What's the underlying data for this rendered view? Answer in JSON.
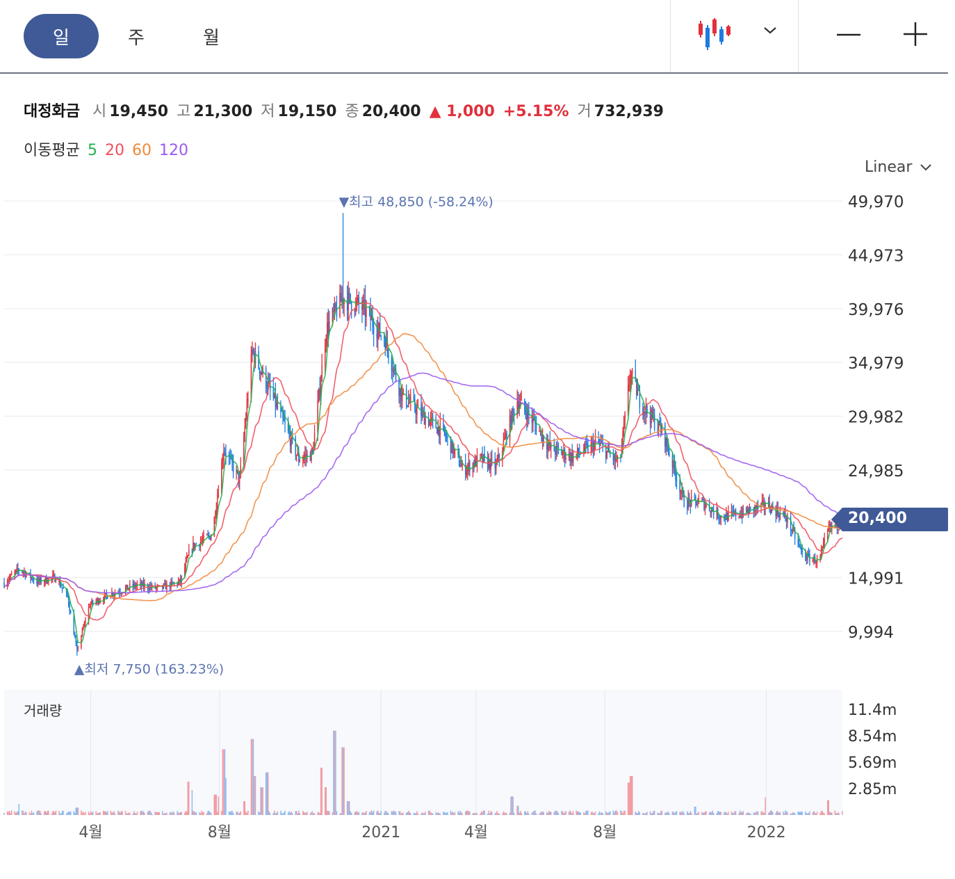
{
  "toolbar": {
    "tabs": [
      {
        "label": "일",
        "active": true
      },
      {
        "label": "주",
        "active": false
      },
      {
        "label": "월",
        "active": false
      }
    ],
    "chart_type_icon": "candlestick-icon",
    "dropdown_icon": "chevron-down-icon",
    "zoom_out_icon": "minus-icon",
    "zoom_in_icon": "plus-icon"
  },
  "info": {
    "name": "대정화금",
    "open_label": "시",
    "open": "19,450",
    "high_label": "고",
    "high": "21,300",
    "low_label": "저",
    "low": "19,150",
    "close_label": "종",
    "close": "20,400",
    "change": "▲ 1,000",
    "change_pct": "+5.15%",
    "volume_label": "거",
    "volume": "732,939"
  },
  "ma": {
    "label": "이동평균",
    "periods": [
      {
        "label": "5",
        "color": "#22b14c"
      },
      {
        "label": "20",
        "color": "#ef4f5b"
      },
      {
        "label": "60",
        "color": "#f08a3c"
      },
      {
        "label": "120",
        "color": "#9b59f0"
      }
    ]
  },
  "scale_select": {
    "label": "Linear"
  },
  "current_price_tag": "20,400",
  "colors": {
    "up": "#e0313c",
    "down": "#1e7be0",
    "accent": "#3f5a96",
    "annotation": "#5b74b0"
  },
  "chart_data": {
    "type": "candlestick",
    "title": "",
    "price_axis": {
      "ticks": [
        "49,970",
        "44,973",
        "39,976",
        "34,979",
        "29,982",
        "24,985",
        "14,991",
        "9,994"
      ],
      "values": [
        49970,
        44973,
        39976,
        34979,
        29982,
        24985,
        14991,
        9994
      ],
      "ylim": [
        7000,
        51000
      ]
    },
    "time_axis": {
      "ticks": [
        "4월",
        "8월",
        "2021",
        "4월",
        "8월",
        "2022"
      ],
      "tick_dates": [
        "2020-04-01",
        "2020-08-01",
        "2021-01-01",
        "2021-04-01",
        "2021-08-01",
        "2022-01-01"
      ],
      "xlim": [
        "2020-01-10",
        "2022-03-14"
      ]
    },
    "annotations": {
      "high": {
        "label": "최고",
        "value": "48,850",
        "pct": "(-58.24%)",
        "date": "2020-11-26"
      },
      "low": {
        "label": "최저",
        "value": "7,750",
        "pct": "(163.23%)",
        "date": "2020-03-19"
      }
    },
    "price_anchors": [
      {
        "date": "2020-01-10",
        "value": 14500
      },
      {
        "date": "2020-01-25",
        "value": 15800
      },
      {
        "date": "2020-02-10",
        "value": 14600
      },
      {
        "date": "2020-02-28",
        "value": 15000
      },
      {
        "date": "2020-03-10",
        "value": 13200
      },
      {
        "date": "2020-03-19",
        "value": 8200
      },
      {
        "date": "2020-03-31",
        "value": 12500
      },
      {
        "date": "2020-04-20",
        "value": 13500
      },
      {
        "date": "2020-05-15",
        "value": 14300
      },
      {
        "date": "2020-06-05",
        "value": 14000
      },
      {
        "date": "2020-06-25",
        "value": 14600
      },
      {
        "date": "2020-07-05",
        "value": 17800
      },
      {
        "date": "2020-07-25",
        "value": 19000
      },
      {
        "date": "2020-08-05",
        "value": 27000
      },
      {
        "date": "2020-08-20",
        "value": 24000
      },
      {
        "date": "2020-09-01",
        "value": 36000
      },
      {
        "date": "2020-09-15",
        "value": 33000
      },
      {
        "date": "2020-09-30",
        "value": 29500
      },
      {
        "date": "2020-10-15",
        "value": 26000
      },
      {
        "date": "2020-10-28",
        "value": 26500
      },
      {
        "date": "2020-11-10",
        "value": 38000
      },
      {
        "date": "2020-11-26",
        "value": 41000
      },
      {
        "date": "2020-12-15",
        "value": 40000
      },
      {
        "date": "2021-01-05",
        "value": 37000
      },
      {
        "date": "2021-01-20",
        "value": 32000
      },
      {
        "date": "2021-02-10",
        "value": 30000
      },
      {
        "date": "2021-03-01",
        "value": 28500
      },
      {
        "date": "2021-03-20",
        "value": 25000
      },
      {
        "date": "2021-04-05",
        "value": 26000
      },
      {
        "date": "2021-04-20",
        "value": 25300
      },
      {
        "date": "2021-05-10",
        "value": 31500
      },
      {
        "date": "2021-05-25",
        "value": 29500
      },
      {
        "date": "2021-06-10",
        "value": 27000
      },
      {
        "date": "2021-07-01",
        "value": 26200
      },
      {
        "date": "2021-07-25",
        "value": 27500
      },
      {
        "date": "2021-08-15",
        "value": 25500
      },
      {
        "date": "2021-08-25",
        "value": 34000
      },
      {
        "date": "2021-09-05",
        "value": 31000
      },
      {
        "date": "2021-09-25",
        "value": 28500
      },
      {
        "date": "2021-10-15",
        "value": 22000
      },
      {
        "date": "2021-11-01",
        "value": 22000
      },
      {
        "date": "2021-11-20",
        "value": 20600
      },
      {
        "date": "2021-12-10",
        "value": 21000
      },
      {
        "date": "2022-01-01",
        "value": 21800
      },
      {
        "date": "2022-01-20",
        "value": 20500
      },
      {
        "date": "2022-02-05",
        "value": 17000
      },
      {
        "date": "2022-02-20",
        "value": 16500
      },
      {
        "date": "2022-03-01",
        "value": 19500
      },
      {
        "date": "2022-03-14",
        "value": 20400
      }
    ],
    "moving_averages": [
      {
        "period": 5,
        "color": "#22b14c"
      },
      {
        "period": 20,
        "color": "#ef4f5b"
      },
      {
        "period": 60,
        "color": "#f08a3c"
      },
      {
        "period": 120,
        "color": "#9b59f0"
      }
    ],
    "volume": {
      "label": "거래량",
      "ticks": [
        "11.4m",
        "8.54m",
        "5.69m",
        "2.85m"
      ],
      "tick_values": [
        11.4,
        8.54,
        5.69,
        2.85
      ],
      "ylim": [
        0,
        13.5
      ],
      "spikes_m": [
        {
          "date": "2020-01-25",
          "value": 1.2
        },
        {
          "date": "2020-03-19",
          "value": 0.8
        },
        {
          "date": "2020-07-03",
          "value": 3.6
        },
        {
          "date": "2020-07-05",
          "value": 2.7
        },
        {
          "date": "2020-07-28",
          "value": 2.2
        },
        {
          "date": "2020-08-01",
          "value": 2.0
        },
        {
          "date": "2020-08-05",
          "value": 7.1
        },
        {
          "date": "2020-08-07",
          "value": 4.0
        },
        {
          "date": "2020-08-24",
          "value": 1.5
        },
        {
          "date": "2020-09-01",
          "value": 8.2
        },
        {
          "date": "2020-09-03",
          "value": 4.2
        },
        {
          "date": "2020-09-10",
          "value": 3.0
        },
        {
          "date": "2020-09-15",
          "value": 4.6
        },
        {
          "date": "2020-11-06",
          "value": 5.1
        },
        {
          "date": "2020-11-09",
          "value": 3.0
        },
        {
          "date": "2020-11-18",
          "value": 9.1
        },
        {
          "date": "2020-11-26",
          "value": 7.3
        },
        {
          "date": "2020-12-01",
          "value": 1.5
        },
        {
          "date": "2021-05-05",
          "value": 2.0
        },
        {
          "date": "2021-05-10",
          "value": 1.0
        },
        {
          "date": "2021-08-23",
          "value": 3.5
        },
        {
          "date": "2021-08-26",
          "value": 4.2
        },
        {
          "date": "2021-08-28",
          "value": 3.2
        },
        {
          "date": "2021-10-25",
          "value": 0.9
        },
        {
          "date": "2022-01-01",
          "value": 1.9
        },
        {
          "date": "2022-02-28",
          "value": 1.6
        }
      ]
    }
  }
}
